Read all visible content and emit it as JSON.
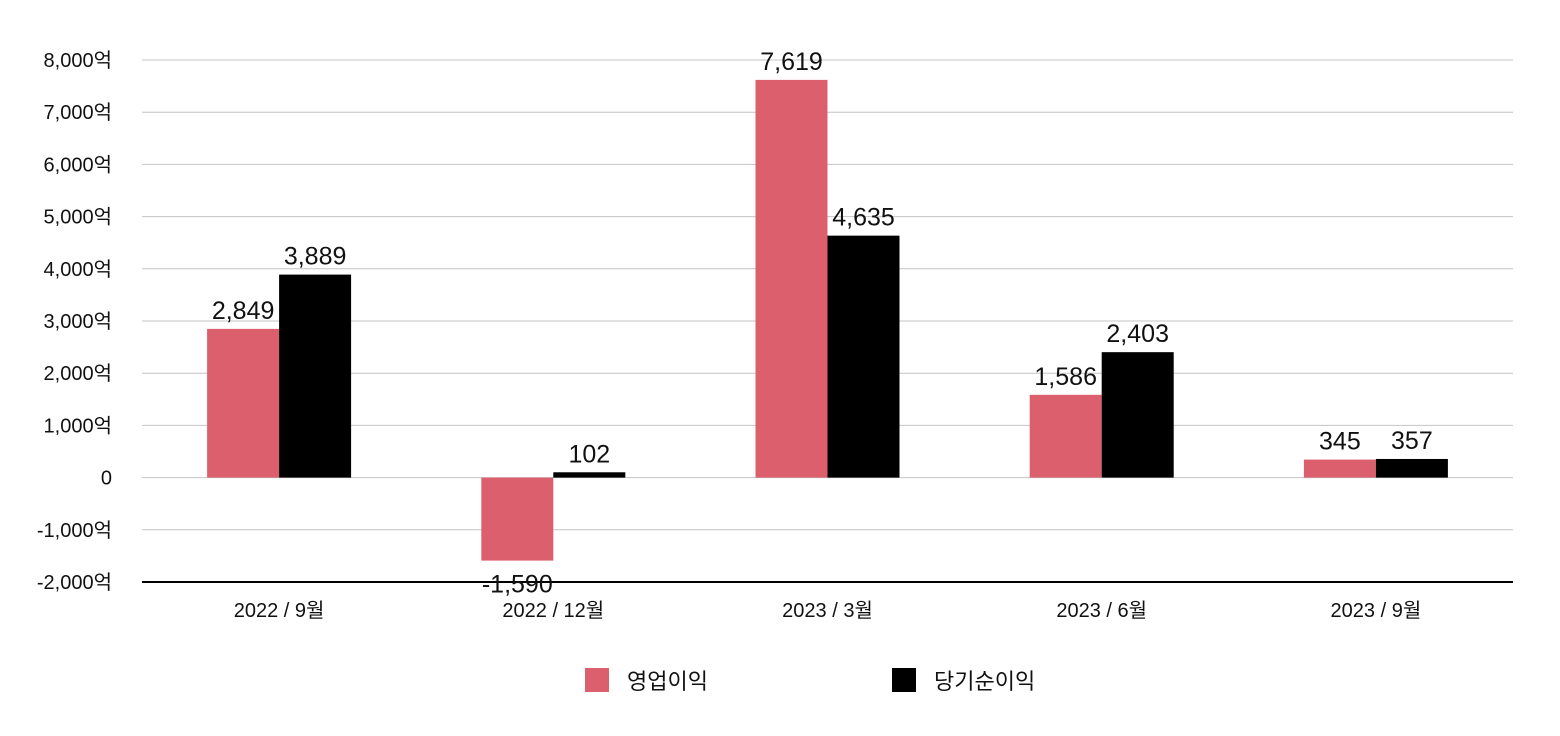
{
  "chart_data": {
    "type": "bar",
    "categories": [
      "2022 / 9월",
      "2022 / 12월",
      "2023 / 3월",
      "2023 / 6월",
      "2023 / 9월"
    ],
    "series": [
      {
        "name": "영업이익",
        "values": [
          2849,
          -1590,
          7619,
          1586,
          345
        ],
        "labels": [
          "2,849",
          "-1,590",
          "7,619",
          "1,586",
          "345"
        ],
        "color": "#DC5F6E"
      },
      {
        "name": "당기순이익",
        "values": [
          3889,
          102,
          4635,
          2403,
          357
        ],
        "labels": [
          "3,889",
          "102",
          "4,635",
          "2,403",
          "357"
        ],
        "color": "#000000"
      }
    ],
    "y_ticks": [
      {
        "value": 8000,
        "label": "8,000억"
      },
      {
        "value": 7000,
        "label": "7,000억"
      },
      {
        "value": 6000,
        "label": "6,000억"
      },
      {
        "value": 5000,
        "label": "5,000억"
      },
      {
        "value": 4000,
        "label": "4,000억"
      },
      {
        "value": 3000,
        "label": "3,000억"
      },
      {
        "value": 2000,
        "label": "2,000억"
      },
      {
        "value": 1000,
        "label": "1,000억"
      },
      {
        "value": 0,
        "label": "0"
      },
      {
        "value": -1000,
        "label": "-1,000억"
      },
      {
        "value": -2000,
        "label": "-2,000억"
      }
    ],
    "ylim": [
      -2000,
      8000
    ],
    "grid": true,
    "legend_position": "bottom-center",
    "title": "",
    "xlabel": "",
    "ylabel": ""
  }
}
